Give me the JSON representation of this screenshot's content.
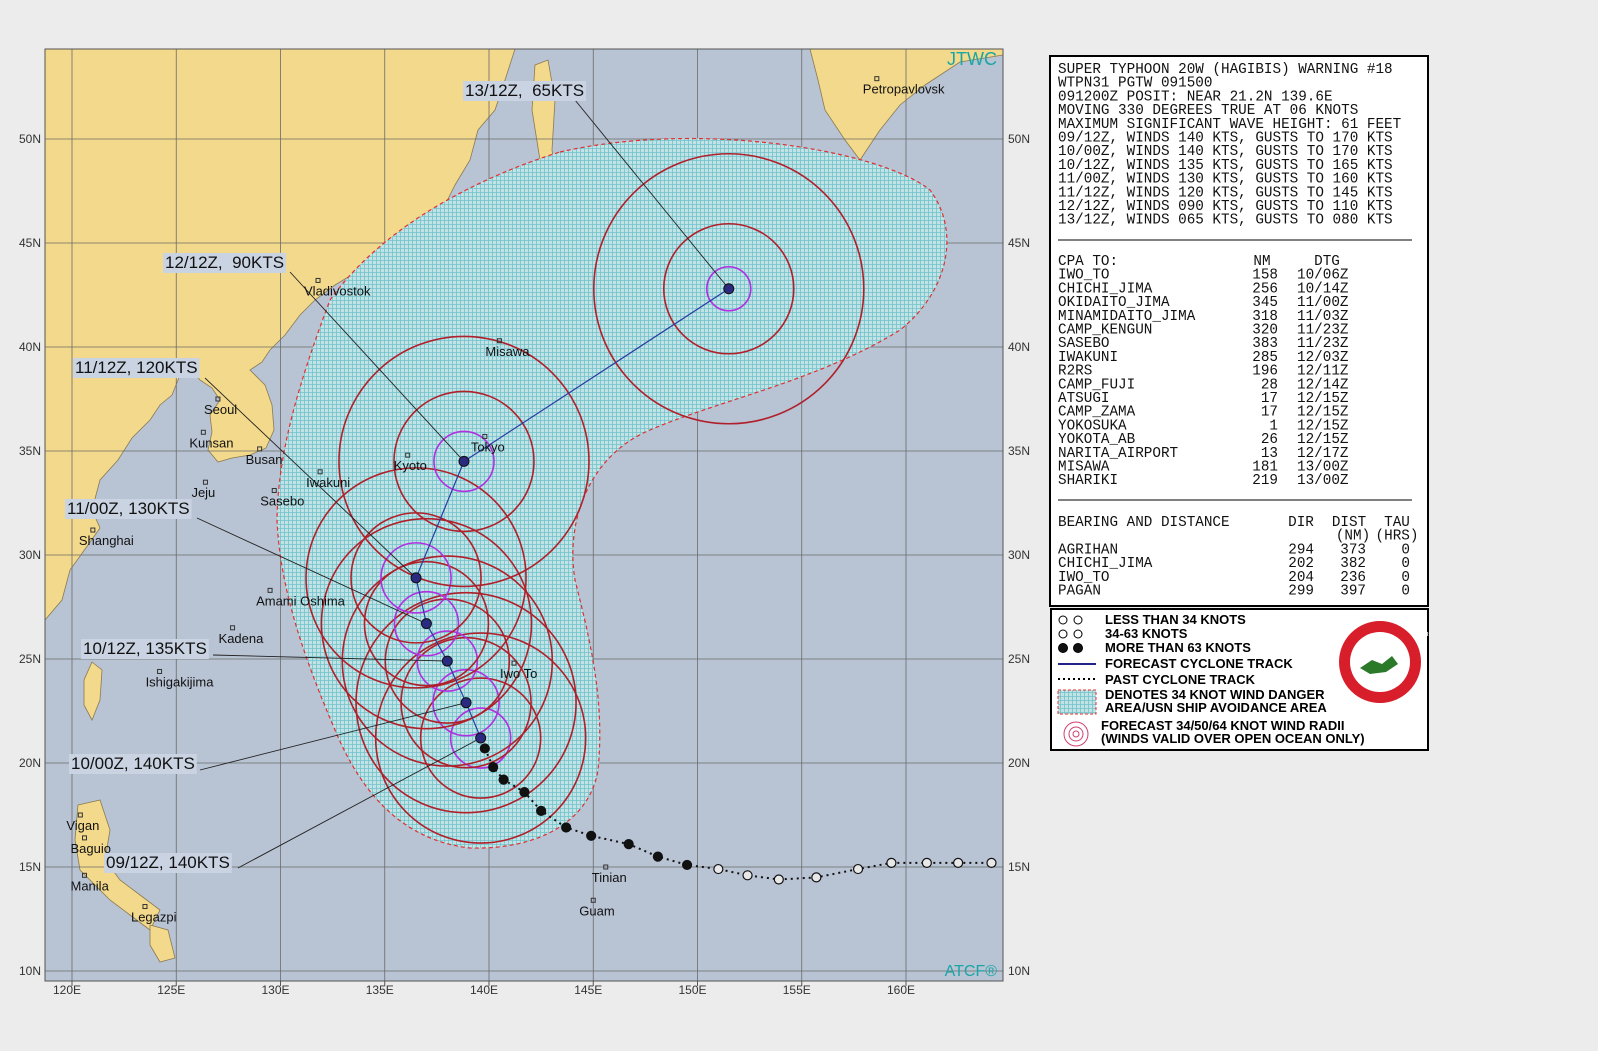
{
  "map": {
    "agency": "JTWC",
    "footer": "ATCF®",
    "lon_ticks": [
      {
        "value": 120,
        "label": "120E"
      },
      {
        "value": 125,
        "label": "125E"
      },
      {
        "value": 130,
        "label": "130E"
      },
      {
        "value": 135,
        "label": "135E"
      },
      {
        "value": 140,
        "label": "140E"
      },
      {
        "value": 145,
        "label": "145E"
      },
      {
        "value": 150,
        "label": "150E"
      },
      {
        "value": 155,
        "label": "155E"
      },
      {
        "value": 160,
        "label": "160E"
      }
    ],
    "lat_ticks": [
      {
        "value": 50,
        "label": "50N"
      },
      {
        "value": 45,
        "label": "45N"
      },
      {
        "value": 40,
        "label": "40N"
      },
      {
        "value": 35,
        "label": "35N"
      },
      {
        "value": 30,
        "label": "30N"
      },
      {
        "value": 25,
        "label": "25N"
      },
      {
        "value": 20,
        "label": "20N"
      },
      {
        "value": 15,
        "label": "15N"
      },
      {
        "value": 10,
        "label": "10N"
      }
    ],
    "places": [
      {
        "name": "Petropavlovsk",
        "lon": 158.6,
        "lat": 52.9
      },
      {
        "name": "Vladivostok",
        "lon": 131.8,
        "lat": 43.2
      },
      {
        "name": "Misawa",
        "lon": 140.5,
        "lat": 40.3
      },
      {
        "name": "Seoul",
        "lon": 127.0,
        "lat": 37.5
      },
      {
        "name": "Kunsan",
        "lon": 126.3,
        "lat": 35.9
      },
      {
        "name": "Busan",
        "lon": 129.0,
        "lat": 35.1
      },
      {
        "name": "Kyoto",
        "lon": 136.1,
        "lat": 34.8
      },
      {
        "name": "Tokyo",
        "lon": 139.8,
        "lat": 35.7
      },
      {
        "name": "Iwakuni",
        "lon": 131.9,
        "lat": 34.0
      },
      {
        "name": "Jeju",
        "lon": 126.4,
        "lat": 33.5
      },
      {
        "name": "Sasebo",
        "lon": 129.7,
        "lat": 33.1
      },
      {
        "name": "Shanghai",
        "lon": 121.0,
        "lat": 31.2
      },
      {
        "name": "Amami Oshima",
        "lon": 129.5,
        "lat": 28.3
      },
      {
        "name": "Kadena",
        "lon": 127.7,
        "lat": 26.5
      },
      {
        "name": "Iwo To",
        "lon": 141.2,
        "lat": 24.8
      },
      {
        "name": "Ishigakijima",
        "lon": 124.2,
        "lat": 24.4
      },
      {
        "name": "Vigan",
        "lon": 120.4,
        "lat": 17.5
      },
      {
        "name": "Baguio",
        "lon": 120.6,
        "lat": 16.4
      },
      {
        "name": "Manila",
        "lon": 120.6,
        "lat": 14.6
      },
      {
        "name": "Legazpi",
        "lon": 123.5,
        "lat": 13.1
      },
      {
        "name": "Tinian",
        "lon": 145.6,
        "lat": 15.0
      },
      {
        "name": "Guam",
        "lon": 145.0,
        "lat": 13.4
      }
    ],
    "forecast": [
      {
        "label": "09/12Z, 140KTS",
        "lon": 139.6,
        "lat": 21.2
      },
      {
        "label": "10/00Z, 140KTS",
        "lon": 138.9,
        "lat": 22.9
      },
      {
        "label": "10/12Z, 135KTS",
        "lon": 138.0,
        "lat": 24.9
      },
      {
        "label": "11/00Z, 130KTS",
        "lon": 137.0,
        "lat": 26.7
      },
      {
        "label": "11/12Z, 120KTS",
        "lon": 136.5,
        "lat": 28.9
      },
      {
        "label": "12/12Z,  90KTS",
        "lon": 138.8,
        "lat": 34.5
      },
      {
        "label": "13/12Z,  65KTS",
        "lon": 151.5,
        "lat": 42.8
      }
    ],
    "past_track": [
      {
        "lon": 139.8,
        "lat": 20.7
      },
      {
        "lon": 140.2,
        "lat": 19.8
      },
      {
        "lon": 140.7,
        "lat": 19.2
      },
      {
        "lon": 141.7,
        "lat": 18.6
      },
      {
        "lon": 142.5,
        "lat": 17.7
      },
      {
        "lon": 143.7,
        "lat": 16.9
      },
      {
        "lon": 144.9,
        "lat": 16.5
      },
      {
        "lon": 146.7,
        "lat": 16.1
      },
      {
        "lon": 148.1,
        "lat": 15.5
      },
      {
        "lon": 149.5,
        "lat": 15.1
      },
      {
        "lon": 151.0,
        "lat": 14.9
      },
      {
        "lon": 152.4,
        "lat": 14.6
      },
      {
        "lon": 153.9,
        "lat": 14.4
      },
      {
        "lon": 155.7,
        "lat": 14.5
      },
      {
        "lon": 157.7,
        "lat": 14.9
      },
      {
        "lon": 159.3,
        "lat": 15.2
      },
      {
        "lon": 161.0,
        "lat": 15.2
      },
      {
        "lon": 162.5,
        "lat": 15.2
      },
      {
        "lon": 164.1,
        "lat": 15.2
      }
    ]
  },
  "warning": {
    "lines": [
      "SUPER TYPHOON 20W (HAGIBIS) WARNING #18",
      "WTPN31 PGTW 091500",
      "091200Z POSIT: NEAR 21.2N 139.6E",
      "MOVING 330 DEGREES TRUE AT 06 KNOTS",
      "MAXIMUM SIGNIFICANT WAVE HEIGHT: 61 FEET",
      "09/12Z, WINDS 140 KTS, GUSTS TO 170 KTS",
      "10/00Z, WINDS 140 KTS, GUSTS TO 170 KTS",
      "10/12Z, WINDS 135 KTS, GUSTS TO 165 KTS",
      "11/00Z, WINDS 130 KTS, GUSTS TO 160 KTS",
      "11/12Z, WINDS 120 KTS, GUSTS TO 145 KTS",
      "12/12Z, WINDS 090 KTS, GUSTS TO 110 KTS",
      "13/12Z, WINDS 065 KTS, GUSTS TO 080 KTS"
    ]
  },
  "cpa": {
    "header": [
      "CPA TO:",
      "NM",
      "DTG"
    ],
    "rows": [
      [
        "IWO_TO",
        158,
        "10/06Z"
      ],
      [
        "CHICHI_JIMA",
        256,
        "10/14Z"
      ],
      [
        "OKIDAITO_JIMA",
        345,
        "11/00Z"
      ],
      [
        "MINAMIDAITO_JIMA",
        318,
        "11/03Z"
      ],
      [
        "CAMP_KENGUN",
        320,
        "11/23Z"
      ],
      [
        "SASEBO",
        383,
        "11/23Z"
      ],
      [
        "IWAKUNI",
        285,
        "12/03Z"
      ],
      [
        "R2RS",
        196,
        "12/11Z"
      ],
      [
        "CAMP_FUJI",
        28,
        "12/14Z"
      ],
      [
        "ATSUGI",
        17,
        "12/15Z"
      ],
      [
        "CAMP_ZAMA",
        17,
        "12/15Z"
      ],
      [
        "YOKOSUKA",
        1,
        "12/15Z"
      ],
      [
        "YOKOTA_AB",
        26,
        "12/15Z"
      ],
      [
        "NARITA_AIRPORT",
        13,
        "12/17Z"
      ],
      [
        "MISAWA",
        181,
        "13/00Z"
      ],
      [
        "SHARIKI",
        219,
        "13/00Z"
      ]
    ]
  },
  "bearing": {
    "header": [
      "BEARING AND DISTANCE",
      "DIR",
      "DIST",
      "TAU"
    ],
    "units": [
      "(NM)",
      "(HRS)"
    ],
    "rows": [
      [
        "AGRIHAN",
        294,
        373,
        0
      ],
      [
        "CHICHI_JIMA",
        202,
        382,
        0
      ],
      [
        "IWO_TO",
        204,
        236,
        0
      ],
      [
        "PAGAN",
        299,
        397,
        0
      ]
    ]
  },
  "legend": {
    "items": [
      "LESS THAN 34 KNOTS",
      "34-63 KNOTS",
      "MORE THAN 63 KNOTS",
      "FORECAST CYCLONE TRACK",
      "PAST CYCLONE TRACK",
      "DENOTES 34 KNOT WIND DANGER",
      "AREA/USN SHIP AVOIDANCE AREA",
      "FORECAST 34/50/64 KNOT WIND RADII",
      "(WINDS VALID OVER OPEN OCEAN ONLY)"
    ],
    "logo": [
      "JOINT TYPHOON WARNING CENTER",
      "PEARL HARBOR",
      "HAWAII"
    ]
  }
}
